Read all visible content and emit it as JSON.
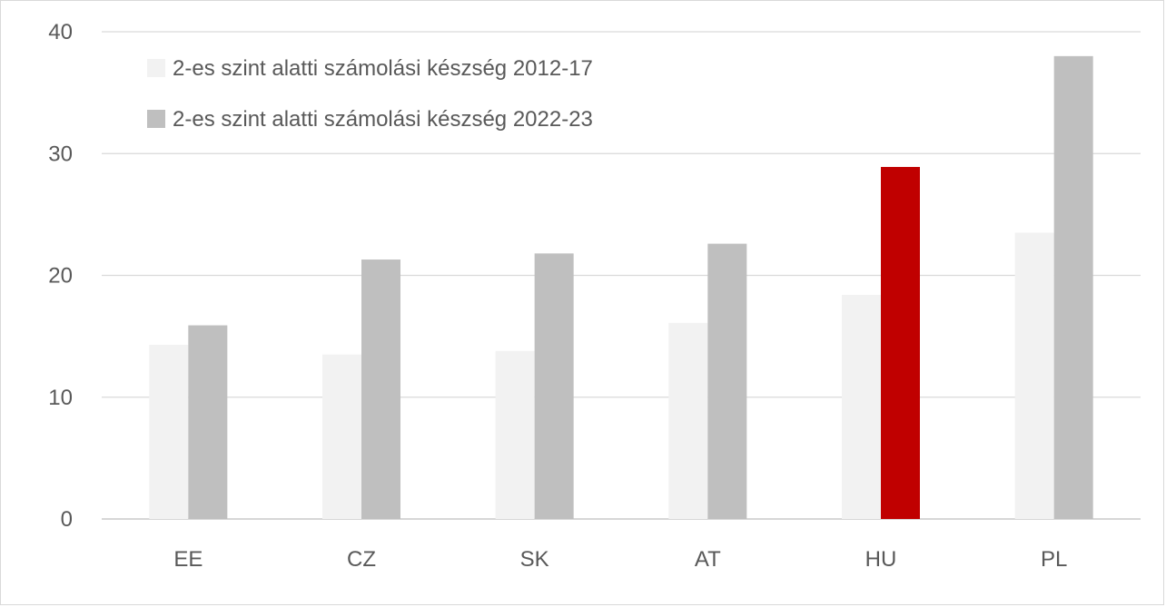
{
  "chart_data": {
    "type": "bar",
    "categories": [
      "EE",
      "CZ",
      "SK",
      "AT",
      "HU",
      "PL"
    ],
    "series": [
      {
        "name": "2-es szint alatti számolási készség 2012-17",
        "color": "#f2f2f2",
        "values": [
          14.3,
          13.5,
          13.8,
          16.1,
          18.4,
          23.5
        ]
      },
      {
        "name": "2-es szint alatti számolási készség 2022-23",
        "color": "#bfbfbf",
        "highlight": {
          "category": "HU",
          "color": "#c00000"
        },
        "values": [
          15.9,
          21.3,
          21.8,
          22.6,
          28.9,
          38.0
        ]
      }
    ],
    "ylim": [
      0,
      40
    ],
    "yticks": [
      "0",
      "10",
      "20",
      "30",
      "40"
    ],
    "grid": true,
    "legend_position": "top-left",
    "title": "",
    "xlabel": "",
    "ylabel": ""
  }
}
